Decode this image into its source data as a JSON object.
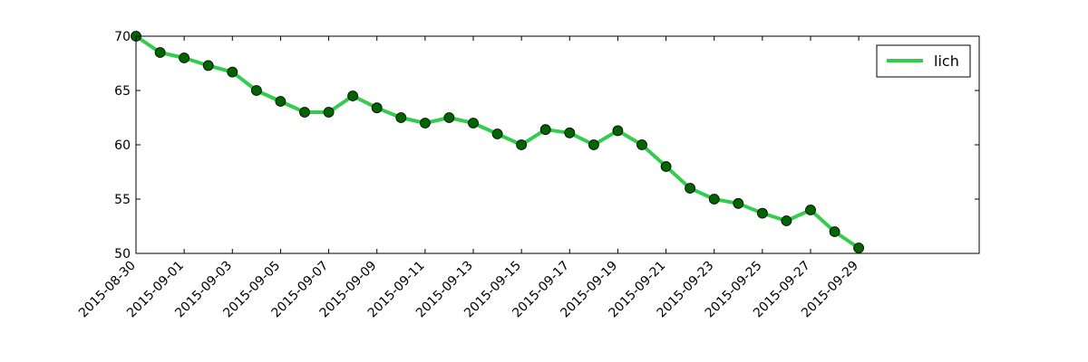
{
  "chart_data": {
    "type": "line",
    "title": "",
    "xlabel": "",
    "ylabel": "",
    "x_type": "date",
    "xlim": [
      "2015-08-30",
      "2015-10-04"
    ],
    "ylim": [
      50,
      70
    ],
    "yticks": [
      50,
      55,
      60,
      65,
      70
    ],
    "xticks": [
      "2015-08-30",
      "2015-09-01",
      "2015-09-03",
      "2015-09-05",
      "2015-09-07",
      "2015-09-09",
      "2015-09-11",
      "2015-09-13",
      "2015-09-15",
      "2015-09-17",
      "2015-09-19",
      "2015-09-21",
      "2015-09-23",
      "2015-09-25",
      "2015-09-27",
      "2015-09-29"
    ],
    "grid": false,
    "legend_position": "top-right",
    "series": [
      {
        "name": "lich",
        "line_color": "#33cc4d",
        "marker_color": "#006400",
        "x": [
          "2015-08-30",
          "2015-08-31",
          "2015-09-01",
          "2015-09-02",
          "2015-09-03",
          "2015-09-04",
          "2015-09-05",
          "2015-09-06",
          "2015-09-07",
          "2015-09-08",
          "2015-09-09",
          "2015-09-10",
          "2015-09-11",
          "2015-09-12",
          "2015-09-13",
          "2015-09-14",
          "2015-09-15",
          "2015-09-16",
          "2015-09-17",
          "2015-09-18",
          "2015-09-19",
          "2015-09-20",
          "2015-09-21",
          "2015-09-22",
          "2015-09-23",
          "2015-09-24",
          "2015-09-25",
          "2015-09-26",
          "2015-09-27",
          "2015-09-28",
          "2015-09-29"
        ],
        "values": [
          70,
          68.5,
          68,
          67.3,
          66.7,
          65,
          64,
          63,
          63,
          64.5,
          63.4,
          62.5,
          62,
          62.5,
          62,
          61,
          60,
          61.4,
          61.1,
          60,
          61.3,
          60,
          58,
          56,
          55,
          54.6,
          53.7,
          53,
          54,
          52,
          50.5
        ]
      }
    ]
  }
}
